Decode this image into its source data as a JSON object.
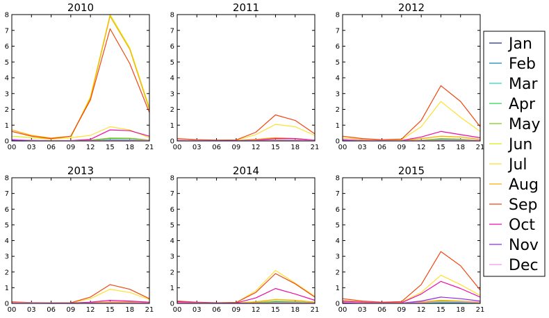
{
  "chart_data": {
    "type": "line",
    "x": [
      "00",
      "03",
      "06",
      "09",
      "12",
      "15",
      "18",
      "21"
    ],
    "xticks": [
      "00",
      "03",
      "06",
      "09",
      "12",
      "15",
      "18",
      "21"
    ],
    "yticks": [
      "0",
      "1",
      "2",
      "3",
      "4",
      "5",
      "6",
      "7",
      "8"
    ],
    "ylim": [
      0,
      8
    ],
    "grid": false,
    "legend_position": "right",
    "legend": [
      {
        "name": "Jan",
        "color": "#1f2a8c"
      },
      {
        "name": "Feb",
        "color": "#0f88b0"
      },
      {
        "name": "Mar",
        "color": "#27d6c0"
      },
      {
        "name": "Apr",
        "color": "#2fd25a"
      },
      {
        "name": "May",
        "color": "#7bcc14"
      },
      {
        "name": "Jun",
        "color": "#d6ee14"
      },
      {
        "name": "Jul",
        "color": "#ffe030"
      },
      {
        "name": "Aug",
        "color": "#ffaa00"
      },
      {
        "name": "Sep",
        "color": "#f04610"
      },
      {
        "name": "Oct",
        "color": "#ea0ca8"
      },
      {
        "name": "Nov",
        "color": "#8f28e8"
      },
      {
        "name": "Dec",
        "color": "#ee9aee"
      }
    ],
    "panels": [
      {
        "title": "2010",
        "series": [
          {
            "name": "Jan",
            "values": [
              0.08,
              0.03,
              0.01,
              0.01,
              0.01,
              0.02,
              0.02,
              0.01
            ]
          },
          {
            "name": "Feb",
            "values": [
              0.05,
              0.02,
              0.01,
              0.01,
              0.02,
              0.05,
              0.05,
              0.02
            ]
          },
          {
            "name": "Mar",
            "values": [
              0.02,
              0.01,
              0.01,
              0.01,
              0.03,
              0.08,
              0.07,
              0.03
            ]
          },
          {
            "name": "Apr",
            "values": [
              0.02,
              0.01,
              0.01,
              0.01,
              0.05,
              0.15,
              0.15,
              0.05
            ]
          },
          {
            "name": "May",
            "values": [
              0.03,
              0.02,
              0.01,
              0.01,
              0.05,
              0.18,
              0.17,
              0.06
            ]
          },
          {
            "name": "Jun",
            "values": [
              0.3,
              0.2,
              0.12,
              0.2,
              2.8,
              8.0,
              5.9,
              2.1
            ]
          },
          {
            "name": "Jul",
            "values": [
              0.6,
              0.3,
              0.15,
              0.2,
              0.35,
              0.9,
              0.7,
              0.2
            ]
          },
          {
            "name": "Aug",
            "values": [
              0.7,
              0.35,
              0.18,
              0.3,
              2.7,
              7.9,
              5.8,
              2.0
            ]
          },
          {
            "name": "Sep",
            "values": [
              0.6,
              0.3,
              0.15,
              0.3,
              2.6,
              7.1,
              4.9,
              1.8
            ]
          },
          {
            "name": "Oct",
            "values": [
              0.1,
              0.05,
              0.02,
              0.02,
              0.1,
              0.7,
              0.65,
              0.3
            ]
          },
          {
            "name": "Nov",
            "values": [
              0.05,
              0.03,
              0.01,
              0.01,
              0.02,
              0.05,
              0.05,
              0.03
            ]
          },
          {
            "name": "Dec",
            "values": [
              0.1,
              0.05,
              0.02,
              0.02,
              0.02,
              0.05,
              0.05,
              0.05
            ]
          }
        ]
      },
      {
        "title": "2011",
        "series": [
          {
            "name": "Jan",
            "values": [
              0.03,
              0.02,
              0.01,
              0.01,
              0.01,
              0.02,
              0.02,
              0.01
            ]
          },
          {
            "name": "Feb",
            "values": [
              0.02,
              0.01,
              0.01,
              0.01,
              0.02,
              0.05,
              0.05,
              0.02
            ]
          },
          {
            "name": "Mar",
            "values": [
              0.01,
              0.01,
              0.01,
              0.01,
              0.02,
              0.04,
              0.04,
              0.02
            ]
          },
          {
            "name": "Apr",
            "values": [
              0.01,
              0.01,
              0.01,
              0.01,
              0.02,
              0.05,
              0.05,
              0.02
            ]
          },
          {
            "name": "May",
            "values": [
              0.02,
              0.01,
              0.01,
              0.01,
              0.03,
              0.07,
              0.06,
              0.02
            ]
          },
          {
            "name": "Jun",
            "values": [
              0.05,
              0.03,
              0.02,
              0.02,
              0.1,
              0.2,
              0.15,
              0.05
            ]
          },
          {
            "name": "Jul",
            "values": [
              0.15,
              0.08,
              0.04,
              0.05,
              0.4,
              1.05,
              0.9,
              0.35
            ]
          },
          {
            "name": "Aug",
            "values": [
              0.05,
              0.03,
              0.02,
              0.02,
              0.1,
              0.2,
              0.15,
              0.05
            ]
          },
          {
            "name": "Sep",
            "values": [
              0.15,
              0.08,
              0.05,
              0.06,
              0.55,
              1.65,
              1.3,
              0.45
            ]
          },
          {
            "name": "Oct",
            "values": [
              0.05,
              0.03,
              0.02,
              0.02,
              0.05,
              0.15,
              0.15,
              0.05
            ]
          },
          {
            "name": "Nov",
            "values": [
              0.03,
              0.02,
              0.01,
              0.01,
              0.02,
              0.05,
              0.05,
              0.02
            ]
          },
          {
            "name": "Dec",
            "values": [
              0.05,
              0.03,
              0.01,
              0.01,
              0.02,
              0.05,
              0.05,
              0.03
            ]
          }
        ]
      },
      {
        "title": "2012",
        "series": [
          {
            "name": "Jan",
            "values": [
              0.05,
              0.03,
              0.01,
              0.01,
              0.01,
              0.02,
              0.02,
              0.02
            ]
          },
          {
            "name": "Feb",
            "values": [
              0.03,
              0.02,
              0.01,
              0.01,
              0.02,
              0.05,
              0.05,
              0.02
            ]
          },
          {
            "name": "Mar",
            "values": [
              0.02,
              0.01,
              0.01,
              0.01,
              0.03,
              0.06,
              0.06,
              0.02
            ]
          },
          {
            "name": "Apr",
            "values": [
              0.02,
              0.01,
              0.01,
              0.01,
              0.04,
              0.1,
              0.1,
              0.03
            ]
          },
          {
            "name": "May",
            "values": [
              0.03,
              0.02,
              0.01,
              0.01,
              0.05,
              0.15,
              0.12,
              0.04
            ]
          },
          {
            "name": "Jun",
            "values": [
              0.1,
              0.05,
              0.03,
              0.03,
              0.15,
              0.3,
              0.25,
              0.1
            ]
          },
          {
            "name": "Jul",
            "values": [
              0.2,
              0.1,
              0.05,
              0.08,
              0.9,
              2.5,
              1.5,
              0.6
            ]
          },
          {
            "name": "Aug",
            "values": [
              0.1,
              0.05,
              0.03,
              0.03,
              0.15,
              0.3,
              0.25,
              0.1
            ]
          },
          {
            "name": "Sep",
            "values": [
              0.3,
              0.15,
              0.08,
              0.12,
              1.3,
              3.5,
              2.5,
              0.9
            ]
          },
          {
            "name": "Oct",
            "values": [
              0.1,
              0.05,
              0.02,
              0.03,
              0.25,
              0.6,
              0.4,
              0.2
            ]
          },
          {
            "name": "Nov",
            "values": [
              0.05,
              0.03,
              0.01,
              0.01,
              0.02,
              0.05,
              0.05,
              0.03
            ]
          },
          {
            "name": "Dec",
            "values": [
              0.08,
              0.04,
              0.02,
              0.02,
              0.03,
              0.05,
              0.05,
              0.05
            ]
          }
        ]
      },
      {
        "title": "2013",
        "series": [
          {
            "name": "Jan",
            "values": [
              0.03,
              0.02,
              0.01,
              0.01,
              0.01,
              0.02,
              0.02,
              0.01
            ]
          },
          {
            "name": "Feb",
            "values": [
              0.02,
              0.01,
              0.01,
              0.01,
              0.02,
              0.04,
              0.04,
              0.02
            ]
          },
          {
            "name": "Mar",
            "values": [
              0.01,
              0.01,
              0.01,
              0.01,
              0.02,
              0.04,
              0.04,
              0.02
            ]
          },
          {
            "name": "Apr",
            "values": [
              0.01,
              0.01,
              0.01,
              0.01,
              0.02,
              0.05,
              0.05,
              0.02
            ]
          },
          {
            "name": "May",
            "values": [
              0.02,
              0.01,
              0.01,
              0.01,
              0.03,
              0.06,
              0.05,
              0.02
            ]
          },
          {
            "name": "Jun",
            "values": [
              0.05,
              0.03,
              0.02,
              0.02,
              0.05,
              0.1,
              0.1,
              0.05
            ]
          },
          {
            "name": "Jul",
            "values": [
              0.1,
              0.05,
              0.03,
              0.03,
              0.3,
              0.9,
              0.7,
              0.25
            ]
          },
          {
            "name": "Aug",
            "values": [
              0.05,
              0.03,
              0.02,
              0.02,
              0.05,
              0.1,
              0.1,
              0.05
            ]
          },
          {
            "name": "Sep",
            "values": [
              0.1,
              0.05,
              0.03,
              0.04,
              0.4,
              1.2,
              0.9,
              0.3
            ]
          },
          {
            "name": "Oct",
            "values": [
              0.05,
              0.03,
              0.02,
              0.02,
              0.08,
              0.2,
              0.15,
              0.08
            ]
          },
          {
            "name": "Nov",
            "values": [
              0.03,
              0.02,
              0.01,
              0.01,
              0.02,
              0.05,
              0.05,
              0.02
            ]
          },
          {
            "name": "Dec",
            "values": [
              0.05,
              0.03,
              0.01,
              0.01,
              0.02,
              0.05,
              0.05,
              0.03
            ]
          }
        ]
      },
      {
        "title": "2014",
        "series": [
          {
            "name": "Jan",
            "values": [
              0.03,
              0.02,
              0.01,
              0.01,
              0.01,
              0.02,
              0.02,
              0.01
            ]
          },
          {
            "name": "Feb",
            "values": [
              0.02,
              0.01,
              0.01,
              0.01,
              0.02,
              0.05,
              0.05,
              0.02
            ]
          },
          {
            "name": "Mar",
            "values": [
              0.02,
              0.01,
              0.01,
              0.01,
              0.03,
              0.06,
              0.06,
              0.02
            ]
          },
          {
            "name": "Apr",
            "values": [
              0.02,
              0.01,
              0.01,
              0.01,
              0.04,
              0.1,
              0.1,
              0.03
            ]
          },
          {
            "name": "May",
            "values": [
              0.03,
              0.02,
              0.01,
              0.01,
              0.05,
              0.15,
              0.12,
              0.04
            ]
          },
          {
            "name": "Jun",
            "values": [
              0.05,
              0.03,
              0.02,
              0.02,
              0.1,
              0.25,
              0.2,
              0.08
            ]
          },
          {
            "name": "Jul",
            "values": [
              0.1,
              0.05,
              0.03,
              0.05,
              0.8,
              2.1,
              1.3,
              0.45
            ]
          },
          {
            "name": "Aug",
            "values": [
              0.05,
              0.03,
              0.02,
              0.02,
              0.1,
              0.25,
              0.2,
              0.08
            ]
          },
          {
            "name": "Sep",
            "values": [
              0.15,
              0.08,
              0.04,
              0.06,
              0.7,
              1.9,
              1.25,
              0.4
            ]
          },
          {
            "name": "Oct",
            "values": [
              0.1,
              0.05,
              0.02,
              0.03,
              0.35,
              0.95,
              0.6,
              0.2
            ]
          },
          {
            "name": "Nov",
            "values": [
              0.03,
              0.02,
              0.01,
              0.01,
              0.02,
              0.05,
              0.05,
              0.02
            ]
          },
          {
            "name": "Dec",
            "values": [
              0.05,
              0.03,
              0.01,
              0.01,
              0.02,
              0.05,
              0.05,
              0.03
            ]
          }
        ]
      },
      {
        "title": "2015",
        "series": [
          {
            "name": "Jan",
            "values": [
              0.05,
              0.03,
              0.01,
              0.01,
              0.01,
              0.02,
              0.02,
              0.02
            ]
          },
          {
            "name": "Feb",
            "values": [
              0.03,
              0.02,
              0.01,
              0.01,
              0.02,
              0.05,
              0.05,
              0.02
            ]
          },
          {
            "name": "Mar",
            "values": [
              0.02,
              0.01,
              0.01,
              0.01,
              0.03,
              0.06,
              0.06,
              0.02
            ]
          },
          {
            "name": "Apr",
            "values": [
              0.02,
              0.01,
              0.01,
              0.01,
              0.04,
              0.1,
              0.1,
              0.03
            ]
          },
          {
            "name": "May",
            "values": [
              0.03,
              0.02,
              0.01,
              0.01,
              0.05,
              0.15,
              0.12,
              0.04
            ]
          },
          {
            "name": "Jun",
            "values": [
              0.1,
              0.05,
              0.03,
              0.03,
              0.1,
              0.2,
              0.15,
              0.08
            ]
          },
          {
            "name": "Jul",
            "values": [
              0.2,
              0.1,
              0.05,
              0.08,
              0.7,
              1.8,
              1.2,
              0.5
            ]
          },
          {
            "name": "Aug",
            "values": [
              0.1,
              0.05,
              0.03,
              0.03,
              0.1,
              0.2,
              0.15,
              0.08
            ]
          },
          {
            "name": "Sep",
            "values": [
              0.3,
              0.15,
              0.08,
              0.12,
              1.2,
              3.3,
              2.4,
              0.85
            ]
          },
          {
            "name": "Oct",
            "values": [
              0.15,
              0.08,
              0.04,
              0.05,
              0.6,
              1.4,
              0.95,
              0.4
            ]
          },
          {
            "name": "Nov",
            "values": [
              0.05,
              0.03,
              0.01,
              0.02,
              0.15,
              0.4,
              0.3,
              0.15
            ]
          },
          {
            "name": "Dec",
            "values": [
              0.08,
              0.04,
              0.02,
              0.02,
              0.05,
              0.1,
              0.1,
              0.05
            ]
          }
        ]
      }
    ]
  }
}
